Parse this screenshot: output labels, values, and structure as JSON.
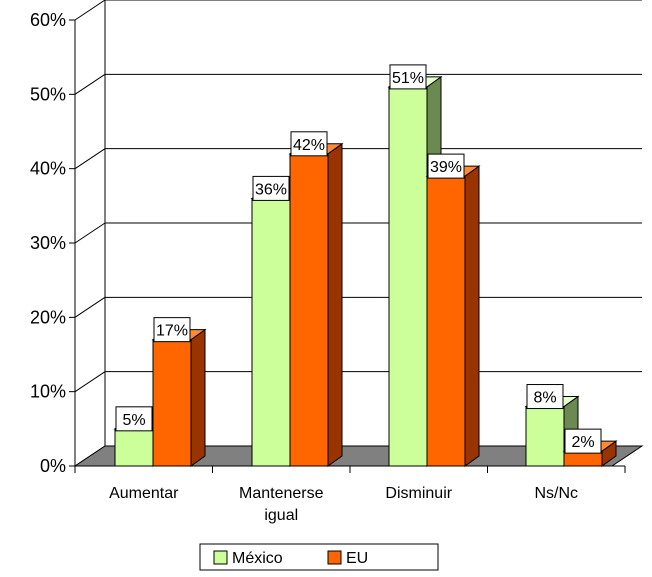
{
  "chart_data": {
    "type": "bar",
    "style": "3d-clustered-column",
    "categories": [
      "Aumentar",
      "Mantenerse igual",
      "Disminuir",
      "Ns/Nc"
    ],
    "category_lines": [
      [
        "Aumentar"
      ],
      [
        "Mantenerse",
        "igual"
      ],
      [
        "Disminuir"
      ],
      [
        "Ns/Nc"
      ]
    ],
    "series": [
      {
        "name": "México",
        "values": [
          5,
          36,
          51,
          8
        ],
        "labels": [
          "5%",
          "36%",
          "51%",
          "8%"
        ],
        "color": "#ccff99",
        "side_color": "#6b8a52",
        "top_color": "#e6ffcc"
      },
      {
        "name": "EU",
        "values": [
          17,
          42,
          39,
          2
        ],
        "labels": [
          "17%",
          "42%",
          "39%",
          "2%"
        ],
        "color": "#ff6600",
        "side_color": "#993300",
        "top_color": "#ff8c33"
      }
    ],
    "y_ticks": [
      "0%",
      "10%",
      "20%",
      "30%",
      "40%",
      "50%",
      "60%"
    ],
    "ylim": [
      0,
      60
    ],
    "grid": true,
    "floor_color": "#808080",
    "legend_position": "bottom"
  }
}
